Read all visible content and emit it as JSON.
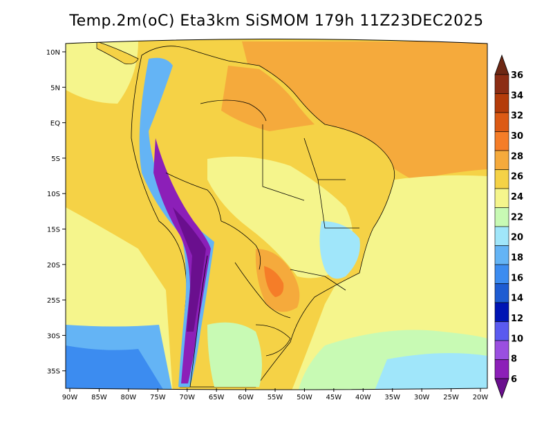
{
  "title": "Temp.2m(oC) Eta3km SiSMOM 179h 11Z23DEC2025",
  "map": {
    "lon_labels": [
      "90W",
      "85W",
      "80W",
      "75W",
      "70W",
      "65W",
      "60W",
      "55W",
      "50W",
      "45W",
      "40W",
      "35W",
      "30W",
      "25W",
      "20W"
    ],
    "lat_labels": [
      "10N",
      "5N",
      "EQ",
      "5S",
      "10S",
      "15S",
      "20S",
      "25S",
      "30S",
      "35S"
    ]
  },
  "colorbar": {
    "labels": [
      "6",
      "8",
      "10",
      "12",
      "14",
      "16",
      "18",
      "20",
      "22",
      "24",
      "26",
      "28",
      "30",
      "32",
      "34",
      "36"
    ],
    "colors": [
      "#6a0f8e",
      "#8c1fb8",
      "#9a4fe0",
      "#5a5af0",
      "#0014b4",
      "#1e5cd2",
      "#3c8cf0",
      "#64b4f5",
      "#a0e6fa",
      "#c8fab4",
      "#f5f58c",
      "#f5d246",
      "#f5aa3c",
      "#f57d28",
      "#dc5a14",
      "#b43c0a",
      "#8c2d14",
      "#6e2814"
    ]
  },
  "colors": {
    "ocean_north": "#f5aa3c",
    "ocean_tropical": "#f5d246",
    "ocean_subtropical": "#f5f58c",
    "ocean_south": "#c8fab4",
    "land_warm": "#f5d246",
    "andes_cold": "#6a0f8e"
  }
}
